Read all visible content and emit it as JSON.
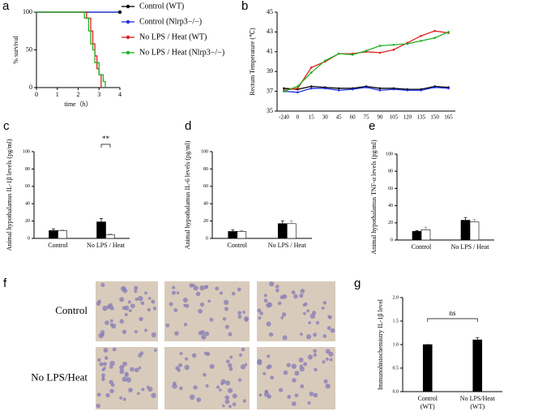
{
  "chart_data": [
    {
      "type": "step",
      "panel_label": "a",
      "xlabel": "time（h）",
      "ylabel": "% survival",
      "xlim": [
        0,
        4
      ],
      "xticks": [
        0,
        1,
        2,
        3,
        4
      ],
      "ylim": [
        0,
        100
      ],
      "yticks": [
        0,
        50,
        100
      ],
      "series": [
        {
          "name": "Control (WT)",
          "color": "#000000",
          "x": [
            0,
            4
          ],
          "values": [
            100,
            100
          ]
        },
        {
          "name": "Control (Nlrp3−/−)",
          "color": "#1f2fe0",
          "x": [
            0,
            4
          ],
          "values": [
            100,
            100
          ]
        },
        {
          "name": "No LPS / Heat (WT)",
          "color": "#e02020",
          "x": [
            0,
            2.4,
            2.6,
            2.7,
            2.8,
            2.9,
            3.0,
            3.1
          ],
          "values": [
            100,
            92,
            75,
            58,
            42,
            25,
            17,
            0
          ]
        },
        {
          "name": "No LPS / Heat (Nlrp3−/−)",
          "color": "#22b022",
          "x": [
            0,
            2.3,
            2.5,
            2.6,
            2.7,
            2.8,
            3.0,
            3.2,
            3.3
          ],
          "values": [
            100,
            92,
            75,
            58,
            50,
            33,
            17,
            8,
            0
          ]
        }
      ]
    },
    {
      "type": "line",
      "panel_label": "b",
      "ylabel": "Rectum Temperature (℃)",
      "categories": [
        -240,
        0,
        15,
        30,
        45,
        60,
        75,
        90,
        105,
        120,
        135,
        150,
        165
      ],
      "ylim": [
        35,
        45
      ],
      "yticks": [
        35,
        37,
        39,
        41,
        43,
        45
      ],
      "series": [
        {
          "color": "#000000",
          "values": [
            37.3,
            37.2,
            37.5,
            37.4,
            37.3,
            37.3,
            37.5,
            37.3,
            37.3,
            37.2,
            37.2,
            37.5,
            37.4
          ]
        },
        {
          "color": "#1f2fe0",
          "values": [
            37.0,
            36.9,
            37.3,
            37.3,
            37.1,
            37.2,
            37.4,
            37.1,
            37.2,
            37.1,
            37.1,
            37.4,
            37.3
          ]
        },
        {
          "color": "#e02020",
          "values": [
            37.1,
            37.3,
            39.4,
            40.0,
            40.8,
            40.8,
            41.0,
            40.9,
            41.2,
            41.9,
            42.6,
            43.1,
            42.9
          ]
        },
        {
          "color": "#22b022",
          "values": [
            37.0,
            37.5,
            38.9,
            40.1,
            40.8,
            40.7,
            41.1,
            41.6,
            41.7,
            41.8,
            42.1,
            42.4,
            43.0
          ]
        }
      ]
    },
    {
      "type": "bar",
      "panel_label": "c",
      "ylabel": "Animal hypothalamus IL-1β levels (pg/ml)",
      "categories": [
        "Control",
        "No LPS / Heat"
      ],
      "ylim": [
        0,
        100
      ],
      "yticks": [
        0,
        20,
        40,
        60,
        80,
        100
      ],
      "series": [
        {
          "color": "#000000",
          "values": [
            9,
            19
          ],
          "errors": [
            2,
            4
          ]
        },
        {
          "color": "#ffffff",
          "values": [
            9,
            4
          ],
          "errors": [
            1,
            1
          ]
        }
      ],
      "annotation": "**"
    },
    {
      "type": "bar",
      "panel_label": "d",
      "ylabel": "Animal hypothalamus IL-6 levels (pg/ml)",
      "categories": [
        "Control",
        "No LPS / Heat"
      ],
      "ylim": [
        0,
        100
      ],
      "yticks": [
        0,
        20,
        40,
        60,
        80,
        100
      ],
      "series": [
        {
          "color": "#000000",
          "values": [
            8,
            17
          ],
          "errors": [
            2,
            3
          ]
        },
        {
          "color": "#ffffff",
          "values": [
            8,
            17
          ],
          "errors": [
            1,
            3
          ]
        }
      ]
    },
    {
      "type": "bar",
      "panel_label": "e",
      "ylabel": "Animal hypothalamus TNF-α levels (pg/ml)",
      "categories": [
        "Control",
        "No LPS / Heat"
      ],
      "ylim": [
        0,
        100
      ],
      "yticks": [
        0,
        20,
        40,
        60,
        80,
        100
      ],
      "series": [
        {
          "color": "#000000",
          "values": [
            10,
            23
          ],
          "errors": [
            1,
            3
          ]
        },
        {
          "color": "#ffffff",
          "values": [
            12,
            21
          ],
          "errors": [
            3,
            3
          ]
        }
      ]
    },
    {
      "type": "bar",
      "panel_label": "g",
      "ylabel": "Immunohistochemistry IL-1β level",
      "categories": [
        [
          "Control",
          "(WT)"
        ],
        [
          "No LPS/Heat",
          "(WT)"
        ]
      ],
      "ylim": [
        0,
        2
      ],
      "yticks": [
        {
          "value": 0,
          "label": "0.0"
        },
        {
          "value": 0.5,
          "label": "0.5"
        },
        {
          "value": 1,
          "label": "1.0"
        },
        {
          "value": 1.5,
          "label": "1.5"
        },
        {
          "value": 2,
          "label": "2.0"
        }
      ],
      "series": [
        {
          "color": "#000000",
          "values": [
            1.0,
            1.1
          ],
          "errors": [
            0,
            0.05
          ]
        }
      ],
      "annotation": "ns"
    }
  ],
  "image_panel": {
    "panel_label": "f",
    "rows": [
      "Control",
      "No LPS/Heat"
    ]
  }
}
